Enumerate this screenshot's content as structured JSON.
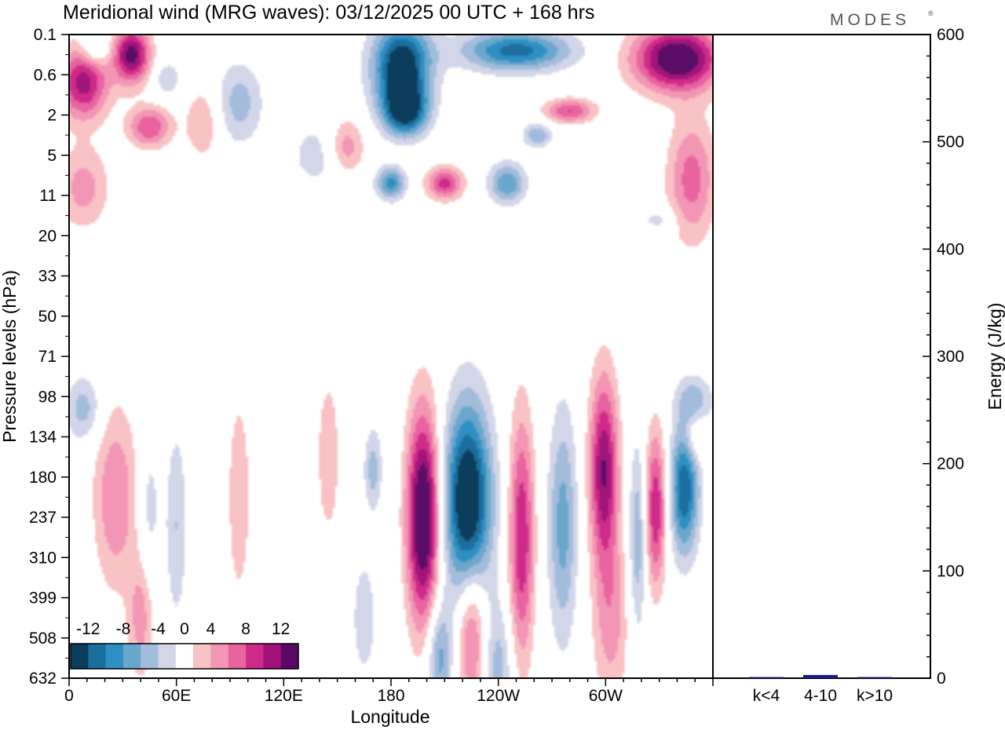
{
  "chart_data": {
    "type": "heatmap",
    "title": "Meridional wind (MRG waves):  03/12/2025  00 UTC  + 168 hrs",
    "brand": "MODES",
    "brand_mark": "®",
    "xlabel": "Longitude",
    "ylabel": "Pressure levels (hPa)",
    "x_ticks": [
      {
        "lon": 0,
        "label": "0"
      },
      {
        "lon": 60,
        "label": "60E"
      },
      {
        "lon": 120,
        "label": "120E"
      },
      {
        "lon": 180,
        "label": "180"
      },
      {
        "lon": 240,
        "label": "120W"
      },
      {
        "lon": 300,
        "label": "60W"
      }
    ],
    "xlim": [
      0,
      360
    ],
    "pressure_levels": [
      "0.1",
      "0.6",
      "2",
      "5",
      "11",
      "20",
      "33",
      "50",
      "71",
      "98",
      "134",
      "180",
      "237",
      "310",
      "399",
      "508",
      "632"
    ],
    "colorbar": {
      "labels": [
        "-12",
        "-8",
        "-4",
        "0",
        "4",
        "8",
        "12"
      ],
      "bins": [
        -14,
        -12,
        -10,
        -8,
        -6,
        -4,
        -2,
        2,
        4,
        6,
        8,
        10,
        12,
        14
      ],
      "colors": [
        "#0b3d5c",
        "#1a6e9e",
        "#2f8fc2",
        "#6aa7cc",
        "#a3bcdb",
        "#d2d6e8",
        "#ffffff",
        "#f9c2c4",
        "#f395b5",
        "#e8649f",
        "#cf2a8a",
        "#a0127a",
        "#5a0a66"
      ]
    },
    "contour_centers": [
      {
        "lon": 8,
        "level": 1.2,
        "value": 11,
        "r_lon": 14,
        "r_lev": 0.9
      },
      {
        "lon": 35,
        "level": 0.5,
        "value": 13,
        "r_lon": 10,
        "r_lev": 0.7
      },
      {
        "lon": 15,
        "level": 0.35,
        "value": -5,
        "r_lon": 8,
        "r_lev": 0.4
      },
      {
        "lon": 45,
        "level": 2.3,
        "value": 8,
        "r_lon": 12,
        "r_lev": 0.5
      },
      {
        "lon": 55,
        "level": 1.1,
        "value": -4,
        "r_lon": 7,
        "r_lev": 0.4
      },
      {
        "lon": 8,
        "level": 3.8,
        "value": 5,
        "r_lon": 14,
        "r_lev": 1.0
      },
      {
        "lon": 95,
        "level": 1.7,
        "value": -5,
        "r_lon": 13,
        "r_lev": 1.0
      },
      {
        "lon": 75,
        "level": 2.2,
        "value": 4,
        "r_lon": 10,
        "r_lev": 0.9
      },
      {
        "lon": 155,
        "level": 2.8,
        "value": 6,
        "r_lon": 10,
        "r_lev": 0.7
      },
      {
        "lon": 186,
        "level": 0.8,
        "value": -15,
        "r_lon": 16,
        "r_lev": 1.1
      },
      {
        "lon": 188,
        "level": 1.9,
        "value": -12,
        "r_lon": 12,
        "r_lev": 0.6
      },
      {
        "lon": 180,
        "level": 3.7,
        "value": -9,
        "r_lon": 8,
        "r_lev": 0.4
      },
      {
        "lon": 210,
        "level": 3.7,
        "value": 9,
        "r_lon": 10,
        "r_lev": 0.4
      },
      {
        "lon": 245,
        "level": 3.7,
        "value": -8,
        "r_lon": 10,
        "r_lev": 0.5
      },
      {
        "lon": 250,
        "level": 0.4,
        "value": -11,
        "r_lon": 30,
        "r_lev": 0.5
      },
      {
        "lon": 340,
        "level": 0.6,
        "value": 15,
        "r_lon": 24,
        "r_lev": 0.8
      },
      {
        "lon": 280,
        "level": 1.9,
        "value": 8,
        "r_lon": 14,
        "r_lev": 0.3
      },
      {
        "lon": 262,
        "level": 2.5,
        "value": -6,
        "r_lon": 8,
        "r_lev": 0.3
      },
      {
        "lon": 348,
        "level": 3.6,
        "value": 7,
        "r_lon": 13,
        "r_lev": 1.5
      },
      {
        "lon": 140,
        "level": 3.0,
        "value": -3,
        "r_lon": 18,
        "r_lev": 0.9
      },
      {
        "lon": 330,
        "level": 4.6,
        "value": -3,
        "r_lon": 10,
        "r_lev": 0.3
      },
      {
        "lon": 198,
        "level": 12.0,
        "value": 16,
        "r_lon": 9,
        "r_lev": 2.6
      },
      {
        "lon": 223,
        "level": 11.6,
        "value": -16,
        "r_lon": 13,
        "r_lev": 2.4
      },
      {
        "lon": 207,
        "level": 15.5,
        "value": -7,
        "r_lon": 7,
        "r_lev": 1.4
      },
      {
        "lon": 253,
        "level": 12.5,
        "value": 10,
        "r_lon": 7,
        "r_lev": 3.0
      },
      {
        "lon": 276,
        "level": 12.2,
        "value": -7,
        "r_lon": 8,
        "r_lev": 2.8
      },
      {
        "lon": 299,
        "level": 10.8,
        "value": 12,
        "r_lon": 8,
        "r_lev": 2.3
      },
      {
        "lon": 303,
        "level": 14.5,
        "value": 5,
        "r_lon": 10,
        "r_lev": 2.2
      },
      {
        "lon": 318,
        "level": 12.5,
        "value": -6,
        "r_lon": 5,
        "r_lev": 2.3
      },
      {
        "lon": 328,
        "level": 11.8,
        "value": 10,
        "r_lon": 6,
        "r_lev": 1.9
      },
      {
        "lon": 344,
        "level": 11.3,
        "value": -12,
        "r_lon": 8,
        "r_lev": 1.6
      },
      {
        "lon": 225,
        "level": 14.8,
        "value": 8,
        "r_lon": 8,
        "r_lev": 1.8
      },
      {
        "lon": 240,
        "level": 15.8,
        "value": -5,
        "r_lon": 8,
        "r_lev": 1.6
      },
      {
        "lon": 26,
        "level": 11.5,
        "value": 6,
        "r_lon": 12,
        "r_lev": 2.2
      },
      {
        "lon": 40,
        "level": 14.5,
        "value": 5,
        "r_lon": 7,
        "r_lev": 1.5
      },
      {
        "lon": 60,
        "level": 12.2,
        "value": -4,
        "r_lon": 6,
        "r_lev": 2.4
      },
      {
        "lon": 45,
        "level": 11.8,
        "value": -3,
        "r_lon": 6,
        "r_lev": 1.8
      },
      {
        "lon": 95,
        "level": 11.5,
        "value": 3,
        "r_lon": 8,
        "r_lev": 3.2
      },
      {
        "lon": 145,
        "level": 10.5,
        "value": 3,
        "r_lon": 8,
        "r_lev": 2.5
      },
      {
        "lon": 170,
        "level": 10.8,
        "value": -5,
        "r_lon": 5,
        "r_lev": 1.0
      },
      {
        "lon": 165,
        "level": 14.5,
        "value": -3,
        "r_lon": 8,
        "r_lev": 1.8
      },
      {
        "lon": 8,
        "level": 9.3,
        "value": -5,
        "r_lon": 10,
        "r_lev": 0.8
      },
      {
        "lon": 350,
        "level": 9.1,
        "value": -5,
        "r_lon": 10,
        "r_lev": 0.6
      },
      {
        "lon": 350,
        "level": 10.0,
        "value": 4,
        "r_lon": 6,
        "r_lev": 0.6
      }
    ],
    "energy_bar": {
      "ylabel": "Energy (J/kg)",
      "ylim": [
        0,
        600
      ],
      "y_ticks": [
        "0",
        "100",
        "200",
        "300",
        "400",
        "500",
        "600"
      ],
      "categories": [
        "k<4",
        "4-10",
        "k>10"
      ],
      "values": [
        0.5,
        3,
        0.5
      ],
      "bar_color": "#1a1a8c"
    }
  }
}
